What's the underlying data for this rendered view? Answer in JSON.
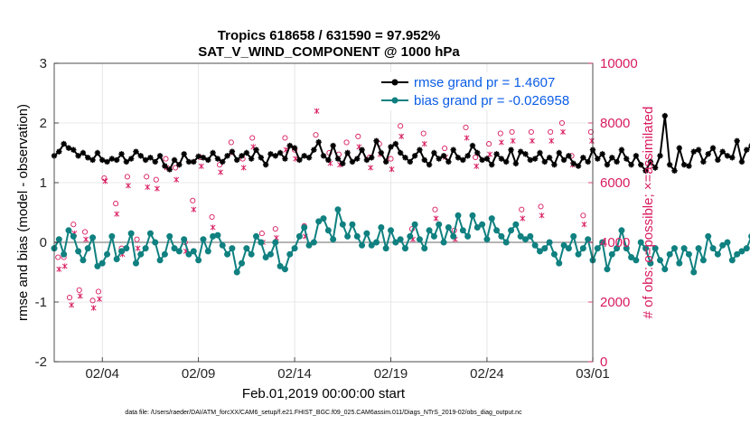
{
  "chart_data": {
    "type": "line",
    "title_line1": "Tropics 618658 / 631590 = 97.952%",
    "title_line2": "SAT_V_WIND_COMPONENT @ 1000 hPa",
    "xlabel": "Feb.01,2019 00:00:00 start",
    "ylabel_left": "rmse and bias (model - observation)",
    "ylabel_right": "# of obs: o=possible; ×=assimilated",
    "x_unit": "days since Feb.01,2019 00:00:00",
    "xlim": [
      0,
      28
    ],
    "ylim_left": [
      -2,
      3
    ],
    "ylim_right": [
      0,
      10000
    ],
    "x_ticks": [
      {
        "value": 2.5,
        "label": "02/04"
      },
      {
        "value": 7.5,
        "label": "02/09"
      },
      {
        "value": 12.5,
        "label": "02/14"
      },
      {
        "value": 17.5,
        "label": "02/19"
      },
      {
        "value": 22.5,
        "label": "02/24"
      },
      {
        "value": 28,
        "label": "03/01"
      }
    ],
    "y_ticks_left": [
      {
        "value": -2,
        "label": "-2"
      },
      {
        "value": -1,
        "label": "-1"
      },
      {
        "value": 0,
        "label": "0"
      },
      {
        "value": 1,
        "label": "1"
      },
      {
        "value": 2,
        "label": "2"
      },
      {
        "value": 3,
        "label": "3"
      }
    ],
    "y_ticks_right": [
      {
        "value": 0,
        "label": "0"
      },
      {
        "value": 2000,
        "label": "2000"
      },
      {
        "value": 4000,
        "label": "4000"
      },
      {
        "value": 6000,
        "label": "6000"
      },
      {
        "value": 8000,
        "label": "8000"
      },
      {
        "value": 10000,
        "label": "10000"
      }
    ],
    "zero_line": 0,
    "legend": [
      {
        "name": "rmse",
        "label": "rmse grand pr = 1.4607",
        "color": "#000000"
      },
      {
        "name": "bias",
        "label": "bias grand pr = -0.026958",
        "color": "#108080"
      }
    ],
    "series": [
      {
        "name": "rmse",
        "color": "#000000",
        "marker": "asterisk",
        "x_start": 0.0,
        "x_step": 0.25,
        "values": [
          1.45,
          1.52,
          1.65,
          1.58,
          1.55,
          1.45,
          1.5,
          1.42,
          1.38,
          1.5,
          1.38,
          1.35,
          1.4,
          1.38,
          1.48,
          1.35,
          1.4,
          1.52,
          1.45,
          1.38,
          1.42,
          1.35,
          1.45,
          1.28,
          1.22,
          1.38,
          1.3,
          1.48,
          1.35,
          1.35,
          1.44,
          1.42,
          1.38,
          1.5,
          1.4,
          1.35,
          1.45,
          1.52,
          1.38,
          1.45,
          1.5,
          1.4,
          1.55,
          1.42,
          1.3,
          1.48,
          1.45,
          1.5,
          1.4,
          1.62,
          1.58,
          1.38,
          1.45,
          1.42,
          1.55,
          1.68,
          1.45,
          1.38,
          1.62,
          1.4,
          1.32,
          1.5,
          1.35,
          1.4,
          1.55,
          1.38,
          1.42,
          1.7,
          1.5,
          1.35,
          1.6,
          1.65,
          1.5,
          1.42,
          1.35,
          1.45,
          1.55,
          1.38,
          1.3,
          1.5,
          1.4,
          1.45,
          1.35,
          1.55,
          1.42,
          1.38,
          1.45,
          1.62,
          1.5,
          1.38,
          1.4,
          1.3,
          1.48,
          1.4,
          1.35,
          1.55,
          1.32,
          1.52,
          1.48,
          1.38,
          1.4,
          1.5,
          1.35,
          1.42,
          1.3,
          1.5,
          1.38,
          1.45,
          1.32,
          1.28,
          1.42,
          1.35,
          1.55,
          1.4,
          1.48,
          1.3,
          1.42,
          1.35,
          1.55,
          1.4,
          1.3,
          1.45,
          1.3,
          1.2,
          1.35,
          1.25,
          1.45,
          2.12,
          1.3,
          1.2,
          1.58,
          1.3,
          1.28,
          1.52,
          1.55,
          1.35,
          1.48,
          1.58,
          1.38,
          1.52,
          1.45,
          1.42,
          1.7,
          1.35,
          1.55,
          1.62,
          1.5,
          1.45,
          1.38,
          1.6,
          1.42,
          1.45,
          1.6,
          1.42,
          1.42,
          1.4,
          1.38
        ]
      },
      {
        "name": "bias",
        "color": "#108080",
        "marker": "dot",
        "x_start": 0.0,
        "x_step": 0.25,
        "values": [
          -0.1,
          0.05,
          -0.2,
          0.2,
          0.1,
          -0.15,
          -0.3,
          -0.1,
          0.08,
          -0.4,
          -0.35,
          -0.2,
          0.1,
          -0.28,
          -0.15,
          -0.1,
          0.15,
          -0.35,
          -0.2,
          -0.1,
          0.15,
          0.0,
          -0.3,
          -0.2,
          0.1,
          -0.1,
          -0.15,
          0.05,
          -0.2,
          -0.15,
          -0.3,
          0.05,
          -0.15,
          0.1,
          0.12,
          -0.05,
          -0.2,
          -0.1,
          -0.5,
          -0.35,
          -0.1,
          -0.2,
          0.1,
          0.0,
          -0.25,
          -0.2,
          0.0,
          -0.4,
          -0.45,
          -0.2,
          -0.1,
          0.1,
          0.25,
          -0.05,
          0.0,
          0.35,
          0.4,
          0.2,
          0.05,
          0.55,
          0.3,
          0.1,
          0.3,
          0.1,
          -0.05,
          0.15,
          -0.05,
          0.0,
          0.25,
          -0.1,
          0.2,
          0.0,
          0.05,
          -0.1,
          0.1,
          0.3,
          0.05,
          -0.1,
          0.2,
          0.1,
          0.3,
          0.0,
          0.25,
          0.1,
          0.45,
          0.2,
          0.1,
          0.45,
          0.25,
          0.3,
          0.05,
          0.4,
          0.2,
          0.1,
          0.0,
          0.2,
          0.3,
          0.1,
          0.05,
          0.1,
          -0.05,
          -0.15,
          -0.1,
          0.0,
          -0.2,
          -0.35,
          -0.05,
          -0.1,
          0.1,
          -0.2,
          -0.1,
          0.05,
          -0.3,
          -0.1,
          0.0,
          -0.45,
          -0.2,
          -0.1,
          0.2,
          -0.1,
          -0.25,
          -0.3,
          0.0,
          -0.1,
          -0.35,
          -0.1,
          -0.3,
          -0.45,
          -0.2,
          -0.1,
          -0.35,
          -0.1,
          -0.2,
          -0.5,
          -0.1,
          -0.3,
          0.1,
          -0.1,
          -0.2,
          -0.05,
          0.0,
          -0.3,
          -0.2,
          -0.15,
          -0.1,
          0.1,
          -0.3,
          0.05,
          -0.2,
          -0.4,
          -0.15,
          0.1,
          0.1,
          -0.35,
          -0.3,
          -0.3
        ]
      },
      {
        "name": "obs possible",
        "color": "#d81b60",
        "marker": "circle",
        "axis": "right",
        "points": [
          [
            0.2,
            3500
          ],
          [
            0.5,
            3500
          ],
          [
            0.8,
            2150
          ],
          [
            1.0,
            4600
          ],
          [
            1.3,
            2400
          ],
          [
            1.6,
            4350
          ],
          [
            2.0,
            2050
          ],
          [
            2.3,
            2350
          ],
          [
            2.6,
            6150
          ],
          [
            3.2,
            5300
          ],
          [
            3.5,
            3800
          ],
          [
            3.8,
            6200
          ],
          [
            4.3,
            4100
          ],
          [
            4.8,
            6200
          ],
          [
            5.3,
            6100
          ],
          [
            5.8,
            6800
          ],
          [
            6.3,
            6500
          ],
          [
            6.8,
            4000
          ],
          [
            7.2,
            5400
          ],
          [
            7.6,
            6850
          ],
          [
            8.2,
            4850
          ],
          [
            8.6,
            6600
          ],
          [
            9.2,
            7350
          ],
          [
            9.8,
            6800
          ],
          [
            10.3,
            7500
          ],
          [
            10.8,
            4300
          ],
          [
            11.5,
            4450
          ],
          [
            12.0,
            7500
          ],
          [
            12.5,
            7100
          ],
          [
            13.0,
            4550
          ],
          [
            13.6,
            7600
          ],
          [
            14.3,
            7000
          ],
          [
            14.8,
            6950
          ],
          [
            15.2,
            7350
          ],
          [
            15.8,
            7550
          ],
          [
            16.4,
            6850
          ],
          [
            16.9,
            7300
          ],
          [
            17.5,
            6800
          ],
          [
            18.0,
            7900
          ],
          [
            18.6,
            4450
          ],
          [
            19.2,
            7650
          ],
          [
            19.8,
            5100
          ],
          [
            20.3,
            7150
          ],
          [
            20.8,
            4400
          ],
          [
            21.4,
            7850
          ],
          [
            21.9,
            6850
          ],
          [
            22.6,
            7300
          ],
          [
            23.2,
            7650
          ],
          [
            23.8,
            7700
          ],
          [
            24.3,
            5100
          ],
          [
            24.8,
            7700
          ],
          [
            25.3,
            5200
          ],
          [
            25.8,
            7700
          ],
          [
            26.4,
            8000
          ],
          [
            26.9,
            6900
          ],
          [
            27.5,
            4900
          ],
          [
            27.9,
            7700
          ]
        ]
      },
      {
        "name": "obs assimilated",
        "color": "#d81b60",
        "marker": "x",
        "axis": "right",
        "points": [
          [
            0.25,
            3100
          ],
          [
            0.55,
            3200
          ],
          [
            0.9,
            1900
          ],
          [
            1.05,
            4300
          ],
          [
            1.35,
            2200
          ],
          [
            1.65,
            4100
          ],
          [
            2.05,
            1800
          ],
          [
            2.35,
            2100
          ],
          [
            2.65,
            6050
          ],
          [
            3.25,
            4950
          ],
          [
            3.55,
            3600
          ],
          [
            3.85,
            5900
          ],
          [
            4.35,
            3800
          ],
          [
            4.85,
            5850
          ],
          [
            5.35,
            5800
          ],
          [
            5.85,
            6500
          ],
          [
            6.35,
            6100
          ],
          [
            6.85,
            3700
          ],
          [
            7.25,
            5100
          ],
          [
            7.65,
            6550
          ],
          [
            8.25,
            4500
          ],
          [
            8.65,
            6350
          ],
          [
            9.25,
            7000
          ],
          [
            9.85,
            6500
          ],
          [
            10.35,
            7200
          ],
          [
            10.85,
            4000
          ],
          [
            11.55,
            4150
          ],
          [
            12.05,
            7100
          ],
          [
            12.55,
            6800
          ],
          [
            13.05,
            4200
          ],
          [
            13.65,
            8400
          ],
          [
            14.35,
            6650
          ],
          [
            14.85,
            6600
          ],
          [
            15.25,
            7000
          ],
          [
            15.85,
            7200
          ],
          [
            16.45,
            6500
          ],
          [
            16.95,
            6950
          ],
          [
            17.55,
            6450
          ],
          [
            18.05,
            7550
          ],
          [
            18.65,
            4100
          ],
          [
            19.25,
            7300
          ],
          [
            19.85,
            4800
          ],
          [
            20.35,
            6850
          ],
          [
            20.85,
            4100
          ],
          [
            21.45,
            7500
          ],
          [
            21.95,
            6550
          ],
          [
            22.65,
            6950
          ],
          [
            23.25,
            7350
          ],
          [
            23.85,
            7400
          ],
          [
            24.35,
            4800
          ],
          [
            24.85,
            7400
          ],
          [
            25.35,
            4900
          ],
          [
            25.85,
            7400
          ],
          [
            26.45,
            7700
          ],
          [
            26.95,
            6600
          ],
          [
            27.55,
            4600
          ],
          [
            27.95,
            7400
          ]
        ]
      }
    ]
  },
  "footnote": "data file: /Users/raeder/DAI/ATM_forcXX/CAM6_setup/f.e21.FHIST_BGC.f09_025.CAM6assim.011/Diags_NTrS_2019-02/obs_diag_output.nc"
}
